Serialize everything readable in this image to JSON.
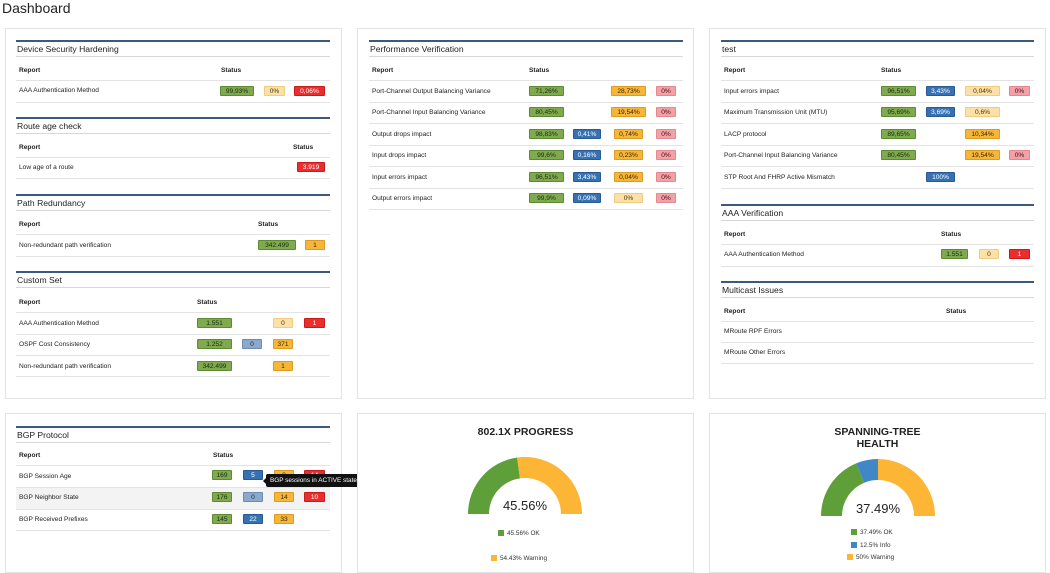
{
  "page": {
    "title": "Dashboard"
  },
  "colors": {
    "ok": "#5f9f3a",
    "info": "#3f87c7",
    "warning": "#fcb535",
    "critical": "#eb2d2d",
    "accent": "#3c5a7d"
  },
  "labels": {
    "report": "Report",
    "status": "Status"
  },
  "cards": {
    "device_security": {
      "title": "Device Security Hardening",
      "rows": [
        {
          "label": "AAA Authentication Method",
          "badges": [
            "99,93%",
            "0%",
            "0,06%"
          ]
        }
      ]
    },
    "route_age": {
      "title": "Route age check",
      "rows": [
        {
          "label": "Low age of a route",
          "badges": [
            "3.919"
          ]
        }
      ]
    },
    "path_redundancy": {
      "title": "Path Redundancy",
      "rows": [
        {
          "label": "Non-redundant path verification",
          "badges": [
            "342.499",
            "1"
          ]
        }
      ]
    },
    "custom_set": {
      "title": "Custom Set",
      "rows": [
        {
          "label": "AAA Authentication Method",
          "badges": [
            "1.551",
            "0",
            "1"
          ]
        },
        {
          "label": "OSPF Cost Consistency",
          "badges": [
            "1.252",
            "0",
            "371"
          ]
        },
        {
          "label": "Non-redundant path verification",
          "badges": [
            "342.499",
            "1"
          ]
        }
      ]
    },
    "performance": {
      "title": "Performance Verification",
      "rows": [
        {
          "label": "Port-Channel Output Balancing Variance",
          "badges": [
            "71,26%",
            "28,73%",
            "0%"
          ]
        },
        {
          "label": "Port-Channel Input Balancing Variance",
          "badges": [
            "80,45%",
            "19,54%",
            "0%"
          ]
        },
        {
          "label": "Output drops impact",
          "badges": [
            "98,83%",
            "0,41%",
            "0,74%",
            "0%"
          ]
        },
        {
          "label": "Input drops impact",
          "badges": [
            "99,6%",
            "0,16%",
            "0,23%",
            "0%"
          ]
        },
        {
          "label": "Input errors impact",
          "badges": [
            "96,51%",
            "3,43%",
            "0,04%",
            "0%"
          ]
        },
        {
          "label": "Output errors impact",
          "badges": [
            "99,9%",
            "0,09%",
            "0%",
            "0%"
          ]
        }
      ]
    },
    "test": {
      "title": "test",
      "rows": [
        {
          "label": "Input errors impact",
          "badges": [
            "96,51%",
            "3,43%",
            "0,04%",
            "0%"
          ]
        },
        {
          "label": "Maximum Transmission Unit (MTU)",
          "badges": [
            "95,69%",
            "3,69%",
            "0,6%"
          ]
        },
        {
          "label": "LACP protocol",
          "badges": [
            "89,65%",
            "10,34%"
          ]
        },
        {
          "label": "Port-Channel Input Balancing Variance",
          "badges": [
            "80,45%",
            "19,54%",
            "0%"
          ]
        },
        {
          "label": "STP Root And FHRP Active Mismatch",
          "badges": [
            "100%"
          ]
        }
      ]
    },
    "aaa_verification": {
      "title": "AAA Verification",
      "rows": [
        {
          "label": "AAA Authentication Method",
          "badges": [
            "1.551",
            "0",
            "1"
          ]
        }
      ]
    },
    "multicast": {
      "title": "Multicast Issues",
      "rows": [
        {
          "label": "MRoute RPF Errors"
        },
        {
          "label": "MRoute Other Errors"
        }
      ]
    },
    "bgp": {
      "title": "BGP Protocol",
      "rows": [
        {
          "label": "BGP Session Age",
          "badges": [
            "169",
            "5",
            "9",
            "14"
          ]
        },
        {
          "label": "BGP Neighbor State",
          "badges": [
            "176",
            "0",
            "14",
            "10"
          ]
        },
        {
          "label": "BGP Received Prefixes",
          "badges": [
            "145",
            "22",
            "33"
          ]
        }
      ],
      "tooltip": "BGP sessions in ACTIVE state."
    }
  },
  "gauges": {
    "dot1x": {
      "title": "802.1X PROGRESS",
      "value": "45.56%",
      "segments": [
        {
          "name": "OK",
          "pct": 45.56,
          "color": "#5f9f3a"
        },
        {
          "name": "Warning",
          "pct": 54.43,
          "color": "#fcb535"
        }
      ],
      "legend": [
        "45.56% OK",
        "54.43% Warning"
      ]
    },
    "stp": {
      "title_line1": "SPANNING-TREE",
      "title_line2": "HEALTH",
      "value": "37.49%",
      "segments": [
        {
          "name": "OK",
          "pct": 37.49,
          "color": "#5f9f3a"
        },
        {
          "name": "Info",
          "pct": 12.5,
          "color": "#3f87c7"
        },
        {
          "name": "Warning",
          "pct": 50,
          "color": "#fcb535"
        }
      ],
      "legend": [
        "37.49% OK",
        "12.5% Info",
        "50% Warning"
      ]
    }
  }
}
